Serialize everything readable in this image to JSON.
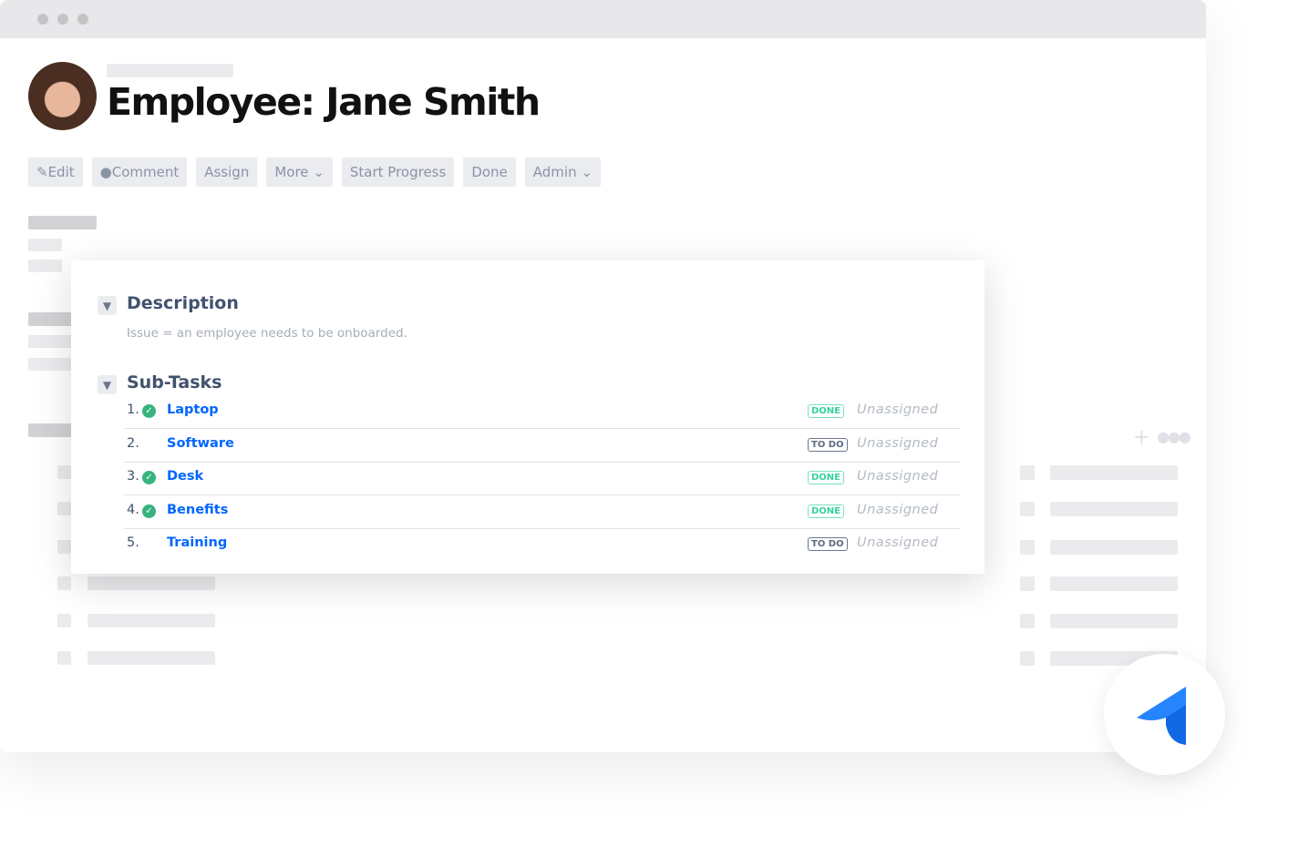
{
  "title": "Employee: Jane Smith",
  "toolbar": [
    {
      "label": "Edit",
      "icon": "pencil-icon"
    },
    {
      "label": "Comment",
      "icon": "speech-bubble-icon"
    },
    {
      "label": "Assign"
    },
    {
      "label": "More",
      "icon": "chevron-down-icon"
    },
    {
      "label": "Start Progress"
    },
    {
      "label": "Done"
    },
    {
      "label": "Admin",
      "icon": "chevron-down-icon"
    }
  ],
  "description": {
    "heading": "Description",
    "text": "Issue = an employee needs to be onboarded."
  },
  "subtasks": {
    "heading": "Sub-Tasks",
    "items": [
      {
        "num": "1.",
        "name": "Laptop",
        "status": "DONE",
        "assignee": "Unassigned",
        "done": true
      },
      {
        "num": "2.",
        "name": "Software",
        "status": "TO DO",
        "assignee": "Unassigned",
        "done": false
      },
      {
        "num": "3.",
        "name": "Desk",
        "status": "DONE",
        "assignee": "Unassigned",
        "done": true
      },
      {
        "num": "4.",
        "name": "Benefits",
        "status": "DONE",
        "assignee": "Unassigned",
        "done": true
      },
      {
        "num": "5.",
        "name": "Training",
        "status": "TO DO",
        "assignee": "Unassigned",
        "done": false
      }
    ]
  },
  "colors": {
    "link": "#0065ff",
    "done": "#36b37e",
    "logo": "#2684ff"
  }
}
